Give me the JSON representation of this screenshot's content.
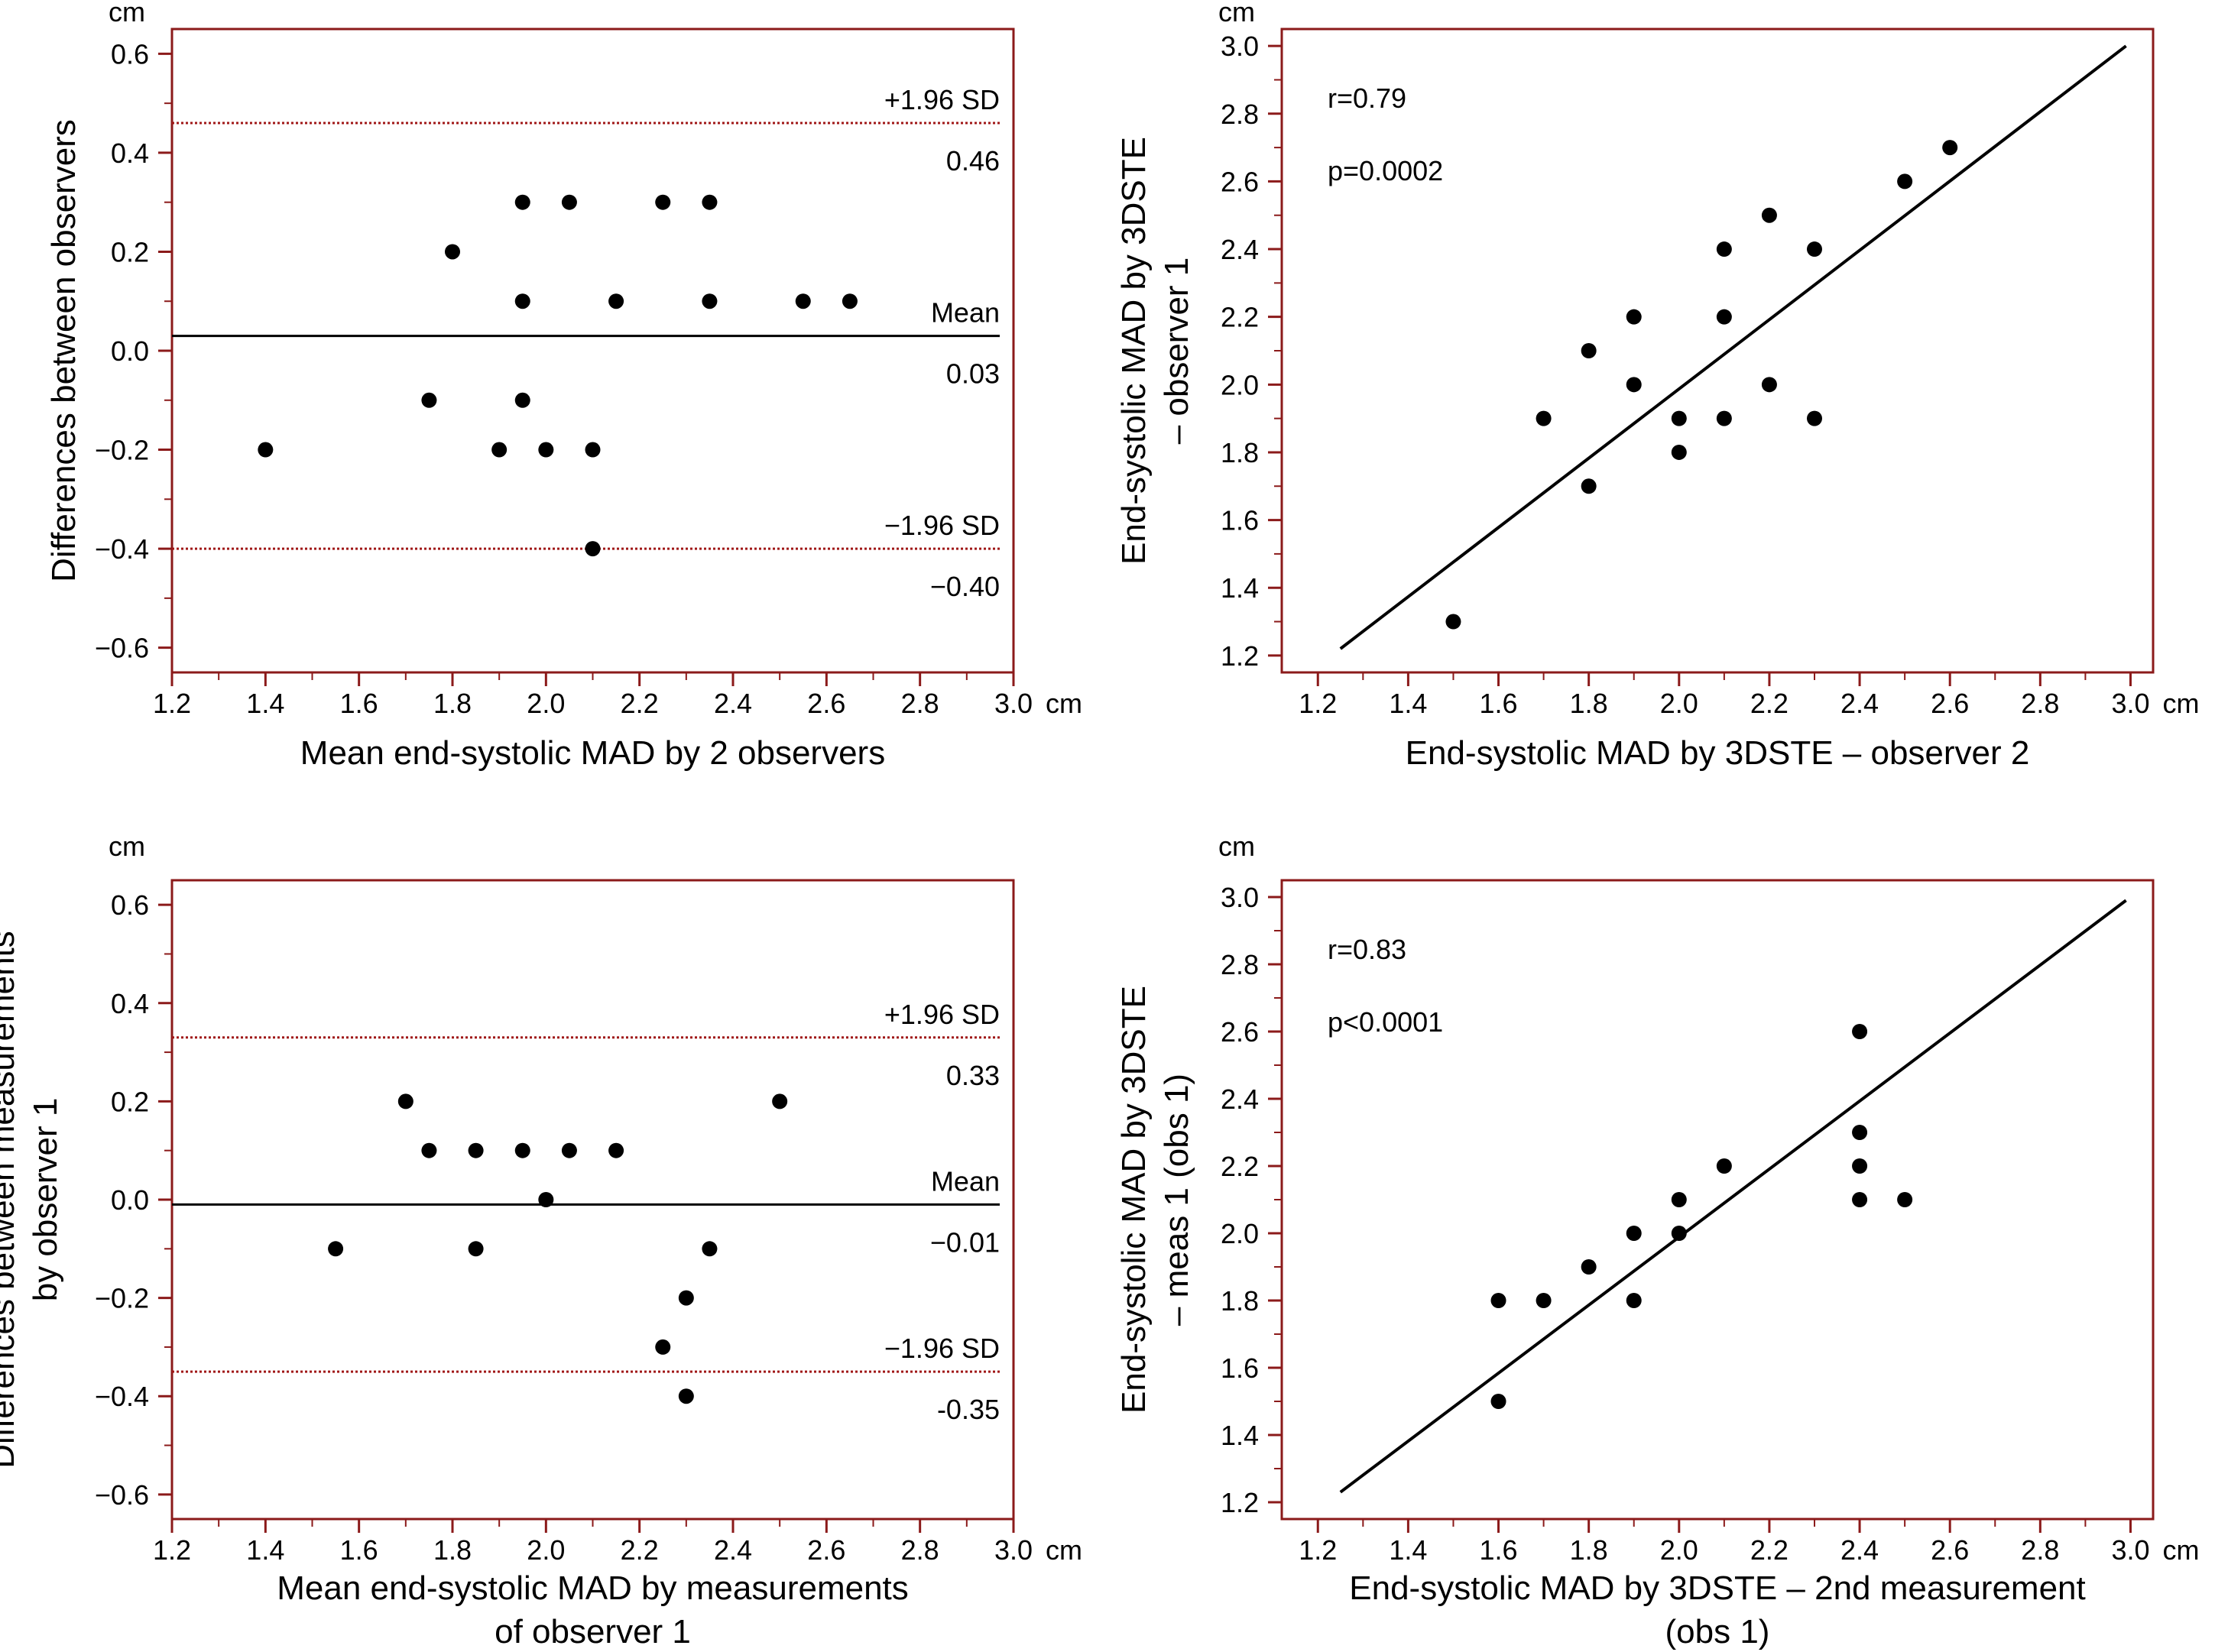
{
  "chart_data": [
    {
      "type": "scatter",
      "variant": "bland-altman",
      "xlabel": [
        "Mean end-systolic MAD by 2 observers"
      ],
      "ylabel": [
        "Differences between observers"
      ],
      "x_unit": "cm",
      "y_unit": "cm",
      "xlim": [
        1.2,
        3.0
      ],
      "ylim": [
        -0.65,
        0.65
      ],
      "x_ticks": [
        "1.2",
        "1.4",
        "1.6",
        "1.8",
        "2.0",
        "2.2",
        "2.4",
        "2.6",
        "2.8",
        "3.0"
      ],
      "y_ticks": [
        "0.6",
        "0.4",
        "0.2",
        "0.0",
        "−0.2",
        "−0.4",
        "−0.6"
      ],
      "x": [
        1.4,
        1.75,
        1.8,
        1.9,
        1.95,
        1.95,
        1.95,
        2.0,
        2.05,
        2.1,
        2.1,
        2.15,
        2.25,
        2.35,
        2.35,
        2.55,
        2.65
      ],
      "y": [
        -0.2,
        -0.1,
        0.2,
        -0.2,
        0.3,
        0.1,
        -0.1,
        -0.2,
        0.3,
        -0.2,
        -0.4,
        0.1,
        0.3,
        0.3,
        0.1,
        0.1,
        0.1
      ],
      "reference_lines": [
        {
          "label": "+1.96 SD",
          "value_label": "0.46",
          "y": 0.46,
          "style": "dotted",
          "color": "#a01818"
        },
        {
          "label": "Mean",
          "value_label": "0.03",
          "y": 0.03,
          "style": "solid",
          "color": "#000000"
        },
        {
          "label": "−1.96 SD",
          "value_label": "−0.40",
          "y": -0.4,
          "style": "dotted",
          "color": "#a01818"
        }
      ],
      "frame_color": "#8b1a1a",
      "grid": false
    },
    {
      "type": "scatter",
      "variant": "correlation",
      "xlabel": [
        "End-systolic MAD by 3DSTE – observer 2"
      ],
      "ylabel": [
        "End-systolic MAD by 3DSTE",
        "– observer 1"
      ],
      "x_unit": "cm",
      "y_unit": "cm",
      "xlim": [
        1.12,
        3.05
      ],
      "ylim": [
        1.15,
        3.05
      ],
      "x_ticks": [
        "1.2",
        "1.4",
        "1.6",
        "1.8",
        "2.0",
        "2.2",
        "2.4",
        "2.6",
        "2.8",
        "3.0"
      ],
      "y_ticks": [
        "3.0",
        "2.8",
        "2.6",
        "2.4",
        "2.2",
        "2.0",
        "1.8",
        "1.6",
        "1.4",
        "1.2"
      ],
      "x": [
        1.5,
        1.7,
        1.8,
        1.8,
        1.9,
        1.9,
        2.0,
        2.0,
        2.1,
        2.1,
        2.1,
        2.2,
        2.2,
        2.3,
        2.3,
        2.5,
        2.6
      ],
      "y": [
        1.3,
        1.9,
        2.1,
        1.7,
        2.2,
        2.0,
        1.9,
        1.8,
        2.4,
        2.2,
        1.9,
        2.5,
        2.0,
        2.4,
        1.9,
        2.6,
        2.7
      ],
      "regression_line": {
        "x": [
          1.25,
          2.99
        ],
        "y": [
          1.22,
          3.0
        ]
      },
      "annotations": [
        "r=0.79",
        "p=0.0002"
      ],
      "frame_color": "#8b1a1a",
      "grid": false
    },
    {
      "type": "scatter",
      "variant": "bland-altman",
      "xlabel": [
        "Mean end-systolic MAD by measurements",
        "of observer 1"
      ],
      "ylabel": [
        "Differences between measurements",
        "by observer 1"
      ],
      "x_unit": "cm",
      "y_unit": "cm",
      "xlim": [
        1.2,
        3.0
      ],
      "ylim": [
        -0.65,
        0.65
      ],
      "x_ticks": [
        "1.2",
        "1.4",
        "1.6",
        "1.8",
        "2.0",
        "2.2",
        "2.4",
        "2.6",
        "2.8",
        "3.0"
      ],
      "y_ticks": [
        "0.6",
        "0.4",
        "0.2",
        "0.0",
        "−0.2",
        "−0.4",
        "−0.6"
      ],
      "x": [
        1.55,
        1.7,
        1.75,
        1.85,
        1.85,
        1.95,
        2.0,
        2.05,
        2.15,
        2.25,
        2.3,
        2.3,
        2.35,
        2.5
      ],
      "y": [
        -0.1,
        0.2,
        0.1,
        0.1,
        -0.1,
        0.1,
        0.0,
        0.1,
        0.1,
        -0.3,
        -0.2,
        -0.4,
        -0.1,
        0.2
      ],
      "reference_lines": [
        {
          "label": "+1.96 SD",
          "value_label": "0.33",
          "y": 0.33,
          "style": "dotted",
          "color": "#a01818"
        },
        {
          "label": "Mean",
          "value_label": "−0.01",
          "y": -0.01,
          "style": "solid",
          "color": "#000000"
        },
        {
          "label": "−1.96 SD",
          "value_label": "-0.35",
          "y": -0.35,
          "style": "dotted",
          "color": "#a01818"
        }
      ],
      "frame_color": "#8b1a1a",
      "grid": false
    },
    {
      "type": "scatter",
      "variant": "correlation",
      "xlabel": [
        "End-systolic MAD by 3DSTE – 2nd measurement",
        "(obs 1)"
      ],
      "ylabel": [
        "End-systolic MAD by 3DSTE",
        "– meas 1 (obs 1)"
      ],
      "x_unit": "cm",
      "y_unit": "cm",
      "xlim": [
        1.12,
        3.05
      ],
      "ylim": [
        1.15,
        3.05
      ],
      "x_ticks": [
        "1.2",
        "1.4",
        "1.6",
        "1.8",
        "2.0",
        "2.2",
        "2.4",
        "2.6",
        "2.8",
        "3.0"
      ],
      "y_ticks": [
        "3.0",
        "2.8",
        "2.6",
        "2.4",
        "2.2",
        "2.0",
        "1.8",
        "1.6",
        "1.4",
        "1.2"
      ],
      "x": [
        1.6,
        1.6,
        1.7,
        1.8,
        1.9,
        1.9,
        2.0,
        2.0,
        2.1,
        2.4,
        2.4,
        2.4,
        2.4,
        2.5
      ],
      "y": [
        1.8,
        1.5,
        1.8,
        1.9,
        2.0,
        1.8,
        2.1,
        2.0,
        2.2,
        2.6,
        2.3,
        2.2,
        2.1,
        2.1
      ],
      "regression_line": {
        "x": [
          1.25,
          2.99
        ],
        "y": [
          1.23,
          2.99
        ]
      },
      "annotations": [
        "r=0.83",
        "p<0.0001"
      ],
      "frame_color": "#8b1a1a",
      "grid": false
    }
  ]
}
